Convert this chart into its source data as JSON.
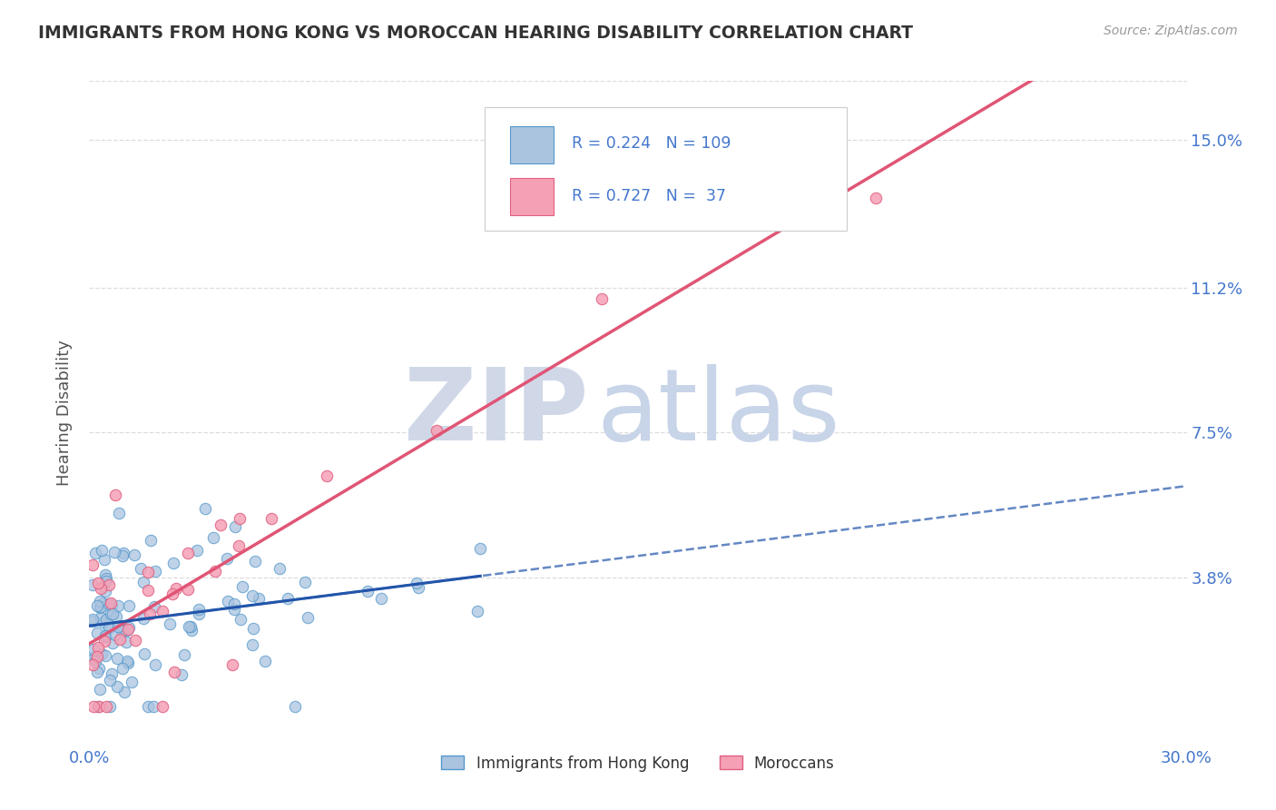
{
  "title": "IMMIGRANTS FROM HONG KONG VS MOROCCAN HEARING DISABILITY CORRELATION CHART",
  "source": "Source: ZipAtlas.com",
  "ylabel": "Hearing Disability",
  "xlim": [
    0.0,
    0.3
  ],
  "ylim": [
    -0.005,
    0.165
  ],
  "yticks": [
    0.038,
    0.075,
    0.112,
    0.15
  ],
  "yticklabels": [
    "3.8%",
    "7.5%",
    "11.2%",
    "15.0%"
  ],
  "hk_color": "#aac4e0",
  "hk_edge_color": "#5599cc",
  "moroccan_color": "#f5a0b5",
  "moroccan_edge_color": "#e06080",
  "hk_trend_color": "#2255aa",
  "moroccan_trend_color": "#e05575",
  "R_hk": 0.224,
  "N_hk": 109,
  "R_moroccan": 0.727,
  "N_moroccan": 37,
  "legend_labels": [
    "Immigrants from Hong Kong",
    "Moroccans"
  ],
  "title_color": "#333333",
  "tick_color": "#4477cc",
  "grid_color": "#dddddd",
  "legend_text_color": "#333333",
  "legend_value_color": "#4477cc"
}
